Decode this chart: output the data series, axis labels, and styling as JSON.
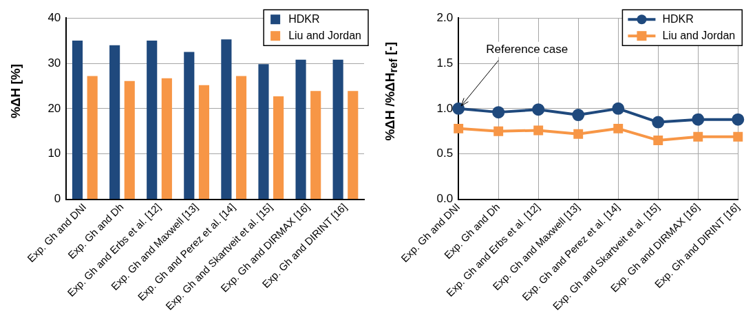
{
  "chart_data": [
    {
      "type": "bar",
      "categories": [
        "Exp. Gh and DNI",
        "Exp. Gh and Dh",
        "Exp. Gh and Erbs et al. [12]",
        "Exp. Gh and Maxwell [13]",
        "Exp. Gh and Perez et al. [14]",
        "Exp. Gh and Skartveit et al. [15]",
        "Exp. Gh and DIRMAX [16]",
        "Exp. Gh and DIRINT [16]"
      ],
      "series": [
        {
          "name": "HDKR",
          "color": "#1f497d",
          "values": [
            35,
            34,
            35,
            32.5,
            35.3,
            29.8,
            30.8,
            30.8
          ]
        },
        {
          "name": "Liu and Jordan",
          "color": "#f79646",
          "values": [
            27.2,
            26.1,
            26.7,
            25.2,
            27.2,
            22.7,
            23.9,
            23.9
          ]
        }
      ],
      "ylabel": "%ΔH  [%]",
      "ylim": [
        0,
        40
      ],
      "yticks": [
        0,
        10,
        20,
        30,
        40
      ],
      "grid": "y",
      "legend": "top right"
    },
    {
      "type": "line",
      "categories": [
        "Exp. Gh and DNI",
        "Exp. Gh and Dh",
        "Exp. Gh and Erbs et al. [12]",
        "Exp. Gh and Maxwell [13]",
        "Exp. Gh and Perez et al. [14]",
        "Exp. Gh and Skartveit et al. [15]",
        "Exp. Gh and DIRMAX [16]",
        "Exp. Gh and DIRINT [16]"
      ],
      "series": [
        {
          "name": "HDKR",
          "color": "#1f497d",
          "marker": "circle",
          "values": [
            1.0,
            0.96,
            0.99,
            0.93,
            1.0,
            0.85,
            0.88,
            0.88
          ]
        },
        {
          "name": "Liu and Jordan",
          "color": "#f79646",
          "marker": "square",
          "values": [
            0.78,
            0.75,
            0.76,
            0.72,
            0.78,
            0.65,
            0.69,
            0.69
          ]
        }
      ],
      "ylabel": "%ΔH /%ΔH$_{ref}$ [-]",
      "ylim": [
        0,
        2
      ],
      "yticks": [
        {
          "value": 0,
          "label": "0.0"
        },
        {
          "value": 0.5,
          "label": "0.5"
        },
        {
          "value": 1,
          "label": "1.0"
        },
        {
          "value": 1.5,
          "label": "1.5"
        },
        {
          "value": 2,
          "label": "2.0"
        }
      ],
      "grid": true,
      "legend": "top right",
      "annotations": [
        {
          "text": "Reference case",
          "x": "Exp. Gh and DNI",
          "y": 1.0
        }
      ]
    }
  ]
}
